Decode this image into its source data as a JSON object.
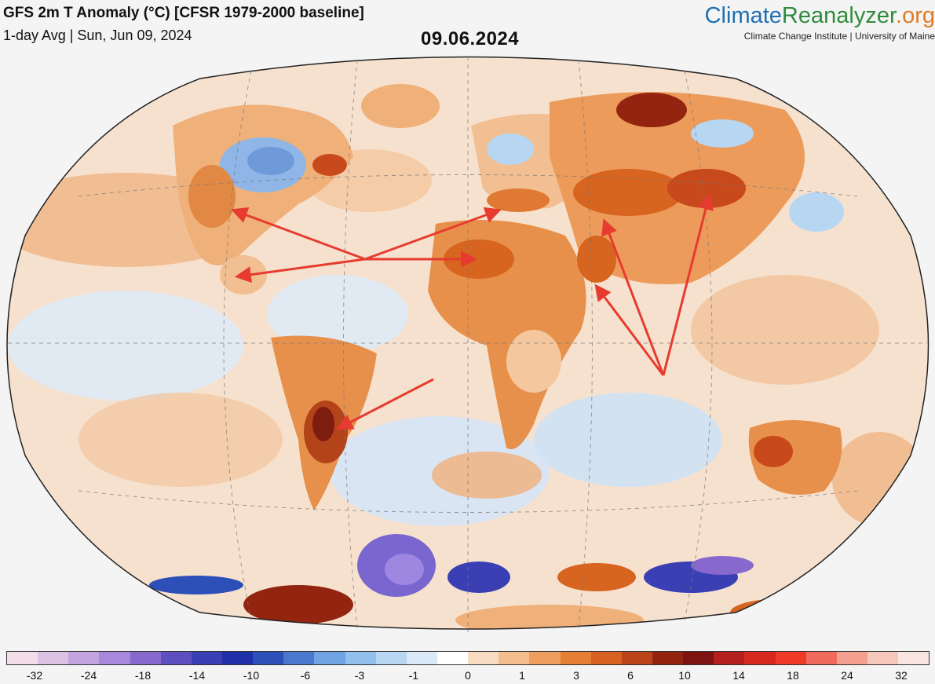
{
  "header": {
    "title": "GFS 2m T Anomaly (°C) [CFSR 1979-2000 baseline]",
    "subtitle": "1-day Avg | Sun, Jun 09, 2024",
    "date_overlay": "09.06.2024"
  },
  "branding": {
    "part1": "Climate",
    "part2": "Reanalyzer",
    "part3": ".org",
    "tagline": "Climate Change Institute | University of Maine"
  },
  "map": {
    "projection": "Winkel-Tripel world",
    "annotation_color": "#e63b2e",
    "annotations_description": "red arrows pointing to heat anomalies in USA, Mexico, Sahara, Mediterranean, Middle East, Central Asia and South America"
  },
  "colorbar": {
    "colors": [
      "#f3dde9",
      "#dcc2e4",
      "#c4a4e0",
      "#a888dd",
      "#8768cc",
      "#5e4fc0",
      "#3a3fb4",
      "#1f2fa8",
      "#2c4fb8",
      "#4a78cd",
      "#6fa3e3",
      "#93c0ec",
      "#b7d6f2",
      "#dae8f7",
      "#ffffff",
      "#f8dcc2",
      "#f4bd8e",
      "#ee9e5f",
      "#e57f36",
      "#d76120",
      "#bb4519",
      "#922410",
      "#7d1412",
      "#b3201e",
      "#d8291f",
      "#ee3a26",
      "#f06b5e",
      "#f3a090",
      "#f6c8bb",
      "#f9e6e2"
    ],
    "ticks": [
      "-32",
      "-24",
      "-18",
      "-14",
      "-10",
      "-6",
      "-3",
      "-1",
      "0",
      "1",
      "3",
      "6",
      "10",
      "14",
      "18",
      "24",
      "32"
    ]
  }
}
